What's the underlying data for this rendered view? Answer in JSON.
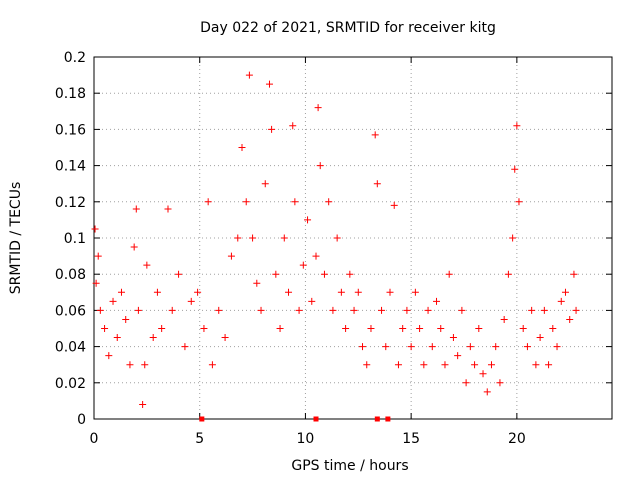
{
  "chart_data": {
    "type": "scatter",
    "title": "Day 022 of 2021, SRMTID for receiver kitg",
    "xlabel": "GPS time / hours",
    "ylabel": "SRMTID / TECUs",
    "xlim": [
      0,
      24.5
    ],
    "ylim": [
      0,
      0.2
    ],
    "x_ticks": [
      0,
      5,
      10,
      15,
      20
    ],
    "x_tick_labels": [
      "0",
      "5",
      "10",
      "15",
      "20"
    ],
    "y_ticks": [
      0,
      0.02,
      0.04,
      0.06,
      0.08,
      0.1,
      0.12,
      0.14,
      0.16,
      0.18,
      0.2
    ],
    "y_tick_labels": [
      "0",
      "0.02",
      "0.04",
      "0.06",
      "0.08",
      "0.1",
      "0.12",
      "0.14",
      "0.16",
      "0.18",
      "0.2"
    ],
    "grid": true,
    "marker": "+",
    "colors": {
      "series": "#ff0000",
      "grid": "#a0a0a0",
      "axes": "#000000"
    },
    "series": [
      {
        "name": "SRMTID",
        "points": [
          [
            0.05,
            0.105
          ],
          [
            0.1,
            0.075
          ],
          [
            0.2,
            0.09
          ],
          [
            0.3,
            0.06
          ],
          [
            0.5,
            0.05
          ],
          [
            0.7,
            0.035
          ],
          [
            0.9,
            0.065
          ],
          [
            1.1,
            0.045
          ],
          [
            1.3,
            0.07
          ],
          [
            1.5,
            0.055
          ],
          [
            1.7,
            0.03
          ],
          [
            1.9,
            0.095
          ],
          [
            2.0,
            0.116
          ],
          [
            2.1,
            0.06
          ],
          [
            2.3,
            0.008
          ],
          [
            2.4,
            0.03
          ],
          [
            2.5,
            0.085
          ],
          [
            2.8,
            0.045
          ],
          [
            3.0,
            0.07
          ],
          [
            3.2,
            0.05
          ],
          [
            3.5,
            0.116
          ],
          [
            3.7,
            0.06
          ],
          [
            4.0,
            0.08
          ],
          [
            4.3,
            0.04
          ],
          [
            4.6,
            0.065
          ],
          [
            4.9,
            0.07
          ],
          [
            5.2,
            0.05
          ],
          [
            5.4,
            0.12
          ],
          [
            5.6,
            0.03
          ],
          [
            5.9,
            0.06
          ],
          [
            6.2,
            0.045
          ],
          [
            6.5,
            0.09
          ],
          [
            6.8,
            0.1
          ],
          [
            7.0,
            0.15
          ],
          [
            7.2,
            0.12
          ],
          [
            7.35,
            0.19
          ],
          [
            7.5,
            0.1
          ],
          [
            7.7,
            0.075
          ],
          [
            7.9,
            0.06
          ],
          [
            8.1,
            0.13
          ],
          [
            8.3,
            0.185
          ],
          [
            8.4,
            0.16
          ],
          [
            8.6,
            0.08
          ],
          [
            8.8,
            0.05
          ],
          [
            9.0,
            0.1
          ],
          [
            9.2,
            0.07
          ],
          [
            9.4,
            0.162
          ],
          [
            9.5,
            0.12
          ],
          [
            9.7,
            0.06
          ],
          [
            9.9,
            0.085
          ],
          [
            10.1,
            0.11
          ],
          [
            10.3,
            0.065
          ],
          [
            10.5,
            0.09
          ],
          [
            10.6,
            0.172
          ],
          [
            10.7,
            0.14
          ],
          [
            10.9,
            0.08
          ],
          [
            11.1,
            0.12
          ],
          [
            11.3,
            0.06
          ],
          [
            11.5,
            0.1
          ],
          [
            11.7,
            0.07
          ],
          [
            11.9,
            0.05
          ],
          [
            12.1,
            0.08
          ],
          [
            12.3,
            0.06
          ],
          [
            12.5,
            0.07
          ],
          [
            12.7,
            0.04
          ],
          [
            12.9,
            0.03
          ],
          [
            13.1,
            0.05
          ],
          [
            13.3,
            0.157
          ],
          [
            13.4,
            0.13
          ],
          [
            13.6,
            0.06
          ],
          [
            13.8,
            0.04
          ],
          [
            14.0,
            0.07
          ],
          [
            14.2,
            0.118
          ],
          [
            14.4,
            0.03
          ],
          [
            14.6,
            0.05
          ],
          [
            14.8,
            0.06
          ],
          [
            15.0,
            0.04
          ],
          [
            15.2,
            0.07
          ],
          [
            15.4,
            0.05
          ],
          [
            15.6,
            0.03
          ],
          [
            15.8,
            0.06
          ],
          [
            16.0,
            0.04
          ],
          [
            16.2,
            0.065
          ],
          [
            16.4,
            0.05
          ],
          [
            16.6,
            0.03
          ],
          [
            16.8,
            0.08
          ],
          [
            17.0,
            0.045
          ],
          [
            17.2,
            0.035
          ],
          [
            17.4,
            0.06
          ],
          [
            17.6,
            0.02
          ],
          [
            17.8,
            0.04
          ],
          [
            18.0,
            0.03
          ],
          [
            18.2,
            0.05
          ],
          [
            18.4,
            0.025
          ],
          [
            18.6,
            0.015
          ],
          [
            18.8,
            0.03
          ],
          [
            19.0,
            0.04
          ],
          [
            19.2,
            0.02
          ],
          [
            19.4,
            0.055
          ],
          [
            19.6,
            0.08
          ],
          [
            19.8,
            0.1
          ],
          [
            19.9,
            0.138
          ],
          [
            20.0,
            0.162
          ],
          [
            20.1,
            0.12
          ],
          [
            20.3,
            0.05
          ],
          [
            20.5,
            0.04
          ],
          [
            20.7,
            0.06
          ],
          [
            20.9,
            0.03
          ],
          [
            21.1,
            0.045
          ],
          [
            21.3,
            0.06
          ],
          [
            21.5,
            0.03
          ],
          [
            21.7,
            0.05
          ],
          [
            21.9,
            0.04
          ],
          [
            22.1,
            0.065
          ],
          [
            22.3,
            0.07
          ],
          [
            22.5,
            0.055
          ],
          [
            22.7,
            0.08
          ],
          [
            22.8,
            0.06
          ]
        ]
      }
    ],
    "marked_gaps_hours": [
      5.1,
      10.5,
      13.4,
      13.9
    ]
  }
}
